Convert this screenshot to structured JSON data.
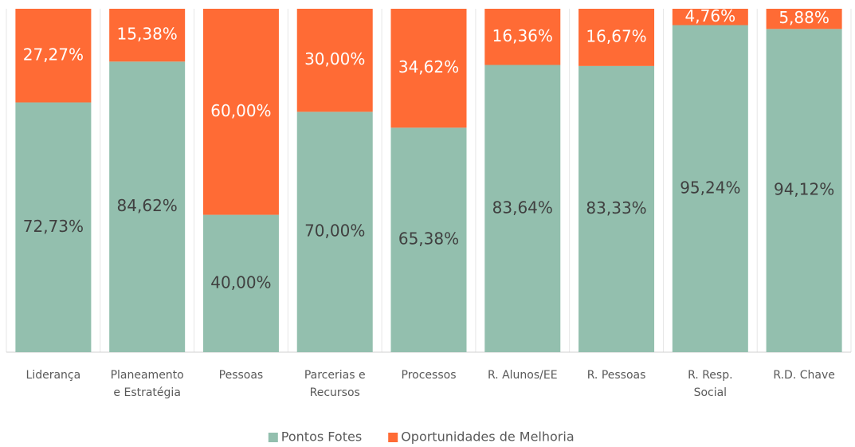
{
  "chart_data": {
    "type": "stacked_bar_100",
    "categories": [
      "Liderança",
      "Planeamento\ne Estratégia",
      "Pessoas",
      "Parcerias e\nRecursos",
      "Processos",
      "R. Alunos/EE",
      "R. Pessoas",
      "R. Resp.\nSocial",
      "R.D. Chave"
    ],
    "series": [
      {
        "name": "Pontos Fotes",
        "color": "#93bfae",
        "values": [
          72.73,
          84.62,
          40,
          70,
          65.38,
          83.64,
          83.33,
          95.24,
          94.12
        ],
        "value_labels": [
          "72,73%",
          "84,62%",
          "40,00%",
          "70,00%",
          "65,38%",
          "83,64%",
          "83,33%",
          "95,24%",
          "94,12%"
        ]
      },
      {
        "name": "Oportunidades de Melhoria",
        "color": "#ff6b35",
        "values": [
          27.27,
          15.38,
          60,
          30,
          34.62,
          16.36,
          16.67,
          4.76,
          5.88
        ],
        "value_labels": [
          "27,27%",
          "15,38%",
          "60,00%",
          "30,00%",
          "34,62%",
          "16,36%",
          "16,67%",
          "4,76%",
          "5,88%"
        ]
      }
    ],
    "ylim": [
      0,
      100
    ],
    "legend": "bottom"
  }
}
